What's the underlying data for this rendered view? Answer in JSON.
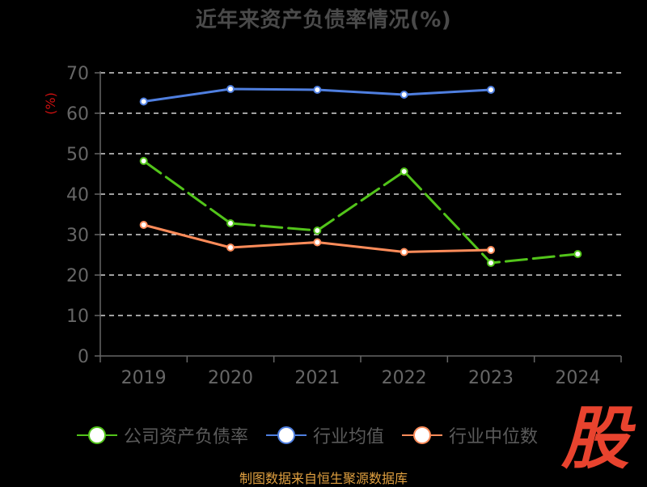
{
  "title": "近年来资产负债率情况(%)",
  "source_note": "制图数据来自恒生聚源数据库",
  "watermark_text": "股",
  "colors": {
    "background": "#000000",
    "company": "#52c41a",
    "industry_avg": "#4f7fe0",
    "industry_median": "#ff8c5a",
    "grid": "#ffffff",
    "axis": "#666666",
    "ylabel": "#cc1010",
    "watermark": "#e8432e",
    "source": "#e0a040"
  },
  "chart_data": {
    "type": "line",
    "title": "近年来资产负债率情况(%)",
    "xlabel": "",
    "ylabel": "(%)",
    "categories": [
      "2019",
      "2020",
      "2021",
      "2022",
      "2023",
      "2024"
    ],
    "ylim": [
      0,
      70
    ],
    "yticks": [
      0,
      10,
      20,
      30,
      40,
      50,
      60,
      70
    ],
    "grid": true,
    "legend_position": "bottom",
    "series": [
      {
        "name": "公司资产负债率",
        "color": "#52c41a",
        "values": [
          48.2,
          32.8,
          31.0,
          45.6,
          23.0,
          25.2
        ]
      },
      {
        "name": "行业均值",
        "color": "#4f7fe0",
        "values": [
          62.9,
          66.0,
          65.8,
          64.6,
          65.8,
          null
        ]
      },
      {
        "name": "行业中位数",
        "color": "#ff8c5a",
        "values": [
          32.4,
          26.8,
          28.1,
          25.7,
          26.2,
          null
        ]
      }
    ]
  },
  "legend": [
    {
      "label": "公司资产负债率",
      "color": "#52c41a"
    },
    {
      "label": "行业均值",
      "color": "#4f7fe0"
    },
    {
      "label": "行业中位数",
      "color": "#ff8c5a"
    }
  ]
}
